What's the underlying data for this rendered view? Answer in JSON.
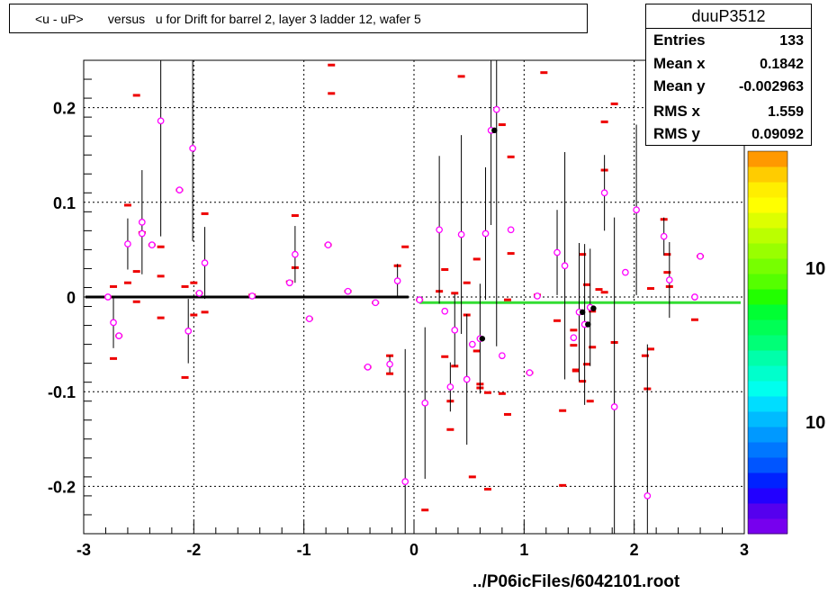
{
  "title": "<u - uP>       versus   u for Drift for barrel 2, layer 3 ladder 12, wafer 5",
  "footer": "../P06icFiles/6042101.root",
  "stats": {
    "name": "duuP3512",
    "rows": [
      {
        "key": "Entries",
        "value": "133"
      },
      {
        "key": "Mean x",
        "value": "0.1842"
      },
      {
        "key": "Mean y",
        "value": "-0.002963"
      },
      {
        "key": "RMS x",
        "value": "1.559"
      },
      {
        "key": "RMS y",
        "value": "0.09092"
      }
    ]
  },
  "palette_labels": [
    "10",
    "10"
  ],
  "colors": {
    "marker": "#ee0000",
    "circle": "#ff00ff",
    "fit_left": "#000000",
    "fit_right": "#33dd33",
    "palette": [
      "#7700ee",
      "#5500ee",
      "#2200ff",
      "#0022ff",
      "#0055ff",
      "#0077ff",
      "#0099ff",
      "#00bbff",
      "#00ddff",
      "#00ffee",
      "#00ffcc",
      "#00ffaa",
      "#00ff77",
      "#00ff55",
      "#00ff33",
      "#22ff00",
      "#55ff00",
      "#77ff00",
      "#99ff00",
      "#bbff00",
      "#ddff00",
      "#ffff00",
      "#ffee00",
      "#ffcc00",
      "#ff9900"
    ]
  },
  "chart_data": {
    "type": "scatter",
    "title": "<u - uP>       versus   u for Drift for barrel 2, layer 3 ladder 12, wafer 5",
    "xlabel": "",
    "ylabel": "",
    "xlim": [
      -3,
      3
    ],
    "ylim": [
      -0.25,
      0.25
    ],
    "x_ticks": [
      -3,
      -2,
      -1,
      0,
      1,
      2,
      3
    ],
    "y_ticks": [
      -0.2,
      -0.1,
      0,
      0.1,
      0.2
    ],
    "x_tick_labels": [
      "-3",
      "-2",
      "-1",
      "0",
      "1",
      "2",
      "3"
    ],
    "y_tick_labels": [
      "-0.2",
      "-0.1",
      "0",
      "0.1",
      "0.2"
    ],
    "grid": true,
    "bins": [
      {
        "x": -2.78,
        "y": 0.0
      },
      {
        "x": -2.73,
        "y": 0.011
      },
      {
        "x": -2.73,
        "y": -0.065
      },
      {
        "x": -2.68,
        "y": -0.041
      },
      {
        "x": -2.6,
        "y": 0.097
      },
      {
        "x": -2.6,
        "y": 0.015
      },
      {
        "x": -2.52,
        "y": 0.213
      },
      {
        "x": -2.52,
        "y": 0.027
      },
      {
        "x": -2.52,
        "y": -0.005
      },
      {
        "x": -2.47,
        "y": 0.068
      },
      {
        "x": -2.38,
        "y": 0.055
      },
      {
        "x": -2.3,
        "y": 0.053
      },
      {
        "x": -2.3,
        "y": 0.022
      },
      {
        "x": -2.3,
        "y": -0.022
      },
      {
        "x": -2.13,
        "y": 0.113
      },
      {
        "x": -2.08,
        "y": 0.011
      },
      {
        "x": -2.08,
        "y": -0.085
      },
      {
        "x": -2.0,
        "y": 0.015
      },
      {
        "x": -2.0,
        "y": -0.019
      },
      {
        "x": -1.95,
        "y": 0.004
      },
      {
        "x": -1.9,
        "y": 0.088
      },
      {
        "x": -1.9,
        "y": -0.016
      },
      {
        "x": -1.47,
        "y": 0.002
      },
      {
        "x": -1.13,
        "y": 0.016
      },
      {
        "x": -1.08,
        "y": 0.086
      },
      {
        "x": -1.08,
        "y": 0.031
      },
      {
        "x": -0.95,
        "y": -0.023
      },
      {
        "x": -0.78,
        "y": 0.055
      },
      {
        "x": -0.75,
        "y": 0.245
      },
      {
        "x": -0.75,
        "y": 0.215
      },
      {
        "x": -0.6,
        "y": 0.006
      },
      {
        "x": -0.42,
        "y": -0.074
      },
      {
        "x": -0.35,
        "y": -0.006
      },
      {
        "x": -0.22,
        "y": -0.062
      },
      {
        "x": -0.22,
        "y": -0.081
      },
      {
        "x": -0.15,
        "y": 0.033
      },
      {
        "x": -0.08,
        "y": 0.053
      },
      {
        "x": 0.05,
        "y": -0.003
      },
      {
        "x": 0.1,
        "y": -0.225
      },
      {
        "x": 0.23,
        "y": 0.006
      },
      {
        "x": 0.28,
        "y": 0.029
      },
      {
        "x": 0.28,
        "y": -0.063
      },
      {
        "x": 0.33,
        "y": -0.11
      },
      {
        "x": 0.33,
        "y": -0.14
      },
      {
        "x": 0.37,
        "y": 0.004
      },
      {
        "x": 0.37,
        "y": -0.073
      },
      {
        "x": 0.43,
        "y": 0.233
      },
      {
        "x": 0.48,
        "y": 0.015
      },
      {
        "x": 0.48,
        "y": -0.019
      },
      {
        "x": 0.53,
        "y": -0.19
      },
      {
        "x": 0.57,
        "y": 0.04
      },
      {
        "x": 0.57,
        "y": -0.057
      },
      {
        "x": 0.6,
        "y": -0.092
      },
      {
        "x": 0.6,
        "y": -0.096
      },
      {
        "x": 0.67,
        "y": -0.101
      },
      {
        "x": 0.67,
        "y": -0.203
      },
      {
        "x": 0.8,
        "y": 0.182
      },
      {
        "x": 0.8,
        "y": -0.102
      },
      {
        "x": 0.85,
        "y": -0.003
      },
      {
        "x": 0.85,
        "y": -0.124
      },
      {
        "x": 0.88,
        "y": 0.148
      },
      {
        "x": 0.88,
        "y": 0.046
      },
      {
        "x": 1.05,
        "y": -0.08
      },
      {
        "x": 1.12,
        "y": 0.002
      },
      {
        "x": 1.18,
        "y": 0.237
      },
      {
        "x": 1.3,
        "y": -0.025
      },
      {
        "x": 1.35,
        "y": -0.12
      },
      {
        "x": 1.35,
        "y": -0.199
      },
      {
        "x": 1.45,
        "y": -0.035
      },
      {
        "x": 1.45,
        "y": -0.051
      },
      {
        "x": 1.47,
        "y": -0.077
      },
      {
        "x": 1.47,
        "y": -0.078
      },
      {
        "x": 1.53,
        "y": 0.045
      },
      {
        "x": 1.53,
        "y": -0.089
      },
      {
        "x": 1.57,
        "y": 0.013
      },
      {
        "x": 1.57,
        "y": -0.071
      },
      {
        "x": 1.6,
        "y": -0.11
      },
      {
        "x": 1.62,
        "y": -0.015
      },
      {
        "x": 1.62,
        "y": -0.053
      },
      {
        "x": 1.68,
        "y": 0.008
      },
      {
        "x": 1.73,
        "y": 0.185
      },
      {
        "x": 1.73,
        "y": 0.134
      },
      {
        "x": 1.73,
        "y": 0.005
      },
      {
        "x": 1.82,
        "y": 0.204
      },
      {
        "x": 1.82,
        "y": -0.048
      },
      {
        "x": 2.1,
        "y": -0.062
      },
      {
        "x": 2.12,
        "y": -0.097
      },
      {
        "x": 2.15,
        "y": 0.009
      },
      {
        "x": 2.15,
        "y": -0.055
      },
      {
        "x": 2.27,
        "y": 0.082
      },
      {
        "x": 2.3,
        "y": 0.045
      },
      {
        "x": 2.3,
        "y": 0.026
      },
      {
        "x": 2.32,
        "y": 0.011
      },
      {
        "x": 2.55,
        "y": -0.024
      },
      {
        "x": 2.6,
        "y": 0.043
      }
    ],
    "points": [
      {
        "x": -2.78,
        "y": 0.0,
        "err": 0.0
      },
      {
        "x": -2.73,
        "y": -0.027,
        "err": 0.027
      },
      {
        "x": -2.68,
        "y": -0.041,
        "err": 0.0
      },
      {
        "x": -2.6,
        "y": 0.056,
        "err": 0.027
      },
      {
        "x": -2.47,
        "y": 0.079,
        "err": 0.055
      },
      {
        "x": -2.47,
        "y": 0.067,
        "err": 0.0
      },
      {
        "x": -2.38,
        "y": 0.055,
        "err": 0.0
      },
      {
        "x": -2.3,
        "y": 0.186,
        "err": 0.122
      },
      {
        "x": -2.13,
        "y": 0.113,
        "err": 0.0
      },
      {
        "x": -2.05,
        "y": -0.036,
        "err": 0.034
      },
      {
        "x": -2.01,
        "y": 0.157,
        "err": 0.098
      },
      {
        "x": -1.95,
        "y": 0.004,
        "err": 0.0
      },
      {
        "x": -1.9,
        "y": 0.036,
        "err": 0.038
      },
      {
        "x": -1.47,
        "y": 0.001,
        "err": 0.0
      },
      {
        "x": -1.13,
        "y": 0.015,
        "err": 0.0
      },
      {
        "x": -1.08,
        "y": 0.045,
        "err": 0.03
      },
      {
        "x": -0.95,
        "y": -0.023,
        "err": 0.0
      },
      {
        "x": -0.78,
        "y": 0.055,
        "err": 0.0
      },
      {
        "x": -0.6,
        "y": 0.006,
        "err": 0.0
      },
      {
        "x": -0.42,
        "y": -0.074,
        "err": 0.0
      },
      {
        "x": -0.35,
        "y": -0.006,
        "err": 0.0
      },
      {
        "x": -0.22,
        "y": -0.071,
        "err": 0.009
      },
      {
        "x": -0.15,
        "y": 0.017,
        "err": 0.018
      },
      {
        "x": -0.08,
        "y": -0.195,
        "err": 0.14
      },
      {
        "x": 0.05,
        "y": -0.003,
        "err": 0.0
      },
      {
        "x": 0.1,
        "y": -0.112,
        "err": 0.08
      },
      {
        "x": 0.23,
        "y": 0.071,
        "err": 0.078
      },
      {
        "x": 0.28,
        "y": -0.015,
        "err": 0.0
      },
      {
        "x": 0.33,
        "y": -0.095,
        "err": 0.026
      },
      {
        "x": 0.37,
        "y": -0.035,
        "err": 0.038
      },
      {
        "x": 0.43,
        "y": 0.066,
        "err": 0.105
      },
      {
        "x": 0.48,
        "y": -0.087,
        "err": 0.069
      },
      {
        "x": 0.53,
        "y": -0.05,
        "err": 0.0
      },
      {
        "x": 0.6,
        "y": -0.044,
        "err": 0.058
      },
      {
        "x": 0.65,
        "y": 0.067,
        "err": 0.07
      },
      {
        "x": 0.7,
        "y": 0.176,
        "err": 0.1
      },
      {
        "x": 0.75,
        "y": 0.198,
        "err": 0.25
      },
      {
        "x": 0.8,
        "y": -0.062,
        "err": 0.0
      },
      {
        "x": 0.88,
        "y": 0.071,
        "err": 0.0
      },
      {
        "x": 1.05,
        "y": -0.08,
        "err": 0.0
      },
      {
        "x": 1.12,
        "y": 0.001,
        "err": 0.0
      },
      {
        "x": 1.3,
        "y": 0.047,
        "err": 0.045
      },
      {
        "x": 1.37,
        "y": 0.033,
        "err": 0.12
      },
      {
        "x": 1.45,
        "y": -0.043,
        "err": 0.0
      },
      {
        "x": 1.5,
        "y": -0.016,
        "err": 0.073
      },
      {
        "x": 1.55,
        "y": -0.029,
        "err": 0.085
      },
      {
        "x": 1.6,
        "y": -0.011,
        "err": 0.062
      },
      {
        "x": 1.73,
        "y": 0.11,
        "err": 0.04
      },
      {
        "x": 1.82,
        "y": -0.116,
        "err": 0.2
      },
      {
        "x": 1.92,
        "y": 0.026,
        "err": 0.0
      },
      {
        "x": 2.02,
        "y": 0.092,
        "err": 0.09
      },
      {
        "x": 2.12,
        "y": -0.21,
        "err": 0.16
      },
      {
        "x": 2.27,
        "y": 0.064,
        "err": 0.02
      },
      {
        "x": 2.32,
        "y": 0.018,
        "err": 0.04
      },
      {
        "x": 2.55,
        "y": 0.0,
        "err": 0.0
      },
      {
        "x": 2.6,
        "y": 0.043,
        "err": 0.0
      }
    ],
    "black_points": [
      {
        "x": 0.62,
        "y": -0.044
      },
      {
        "x": 0.73,
        "y": 0.176
      },
      {
        "x": 1.53,
        "y": -0.016
      },
      {
        "x": 1.58,
        "y": -0.029
      },
      {
        "x": 1.63,
        "y": -0.012
      }
    ],
    "fit_lines": [
      {
        "x": [
          -3.0,
          -0.05
        ],
        "y": [
          0.0,
          0.0
        ],
        "color": "#000000"
      },
      {
        "x": 0.05,
        "x_end": 3.0,
        "y": -0.006,
        "color": "#33dd33"
      }
    ]
  }
}
